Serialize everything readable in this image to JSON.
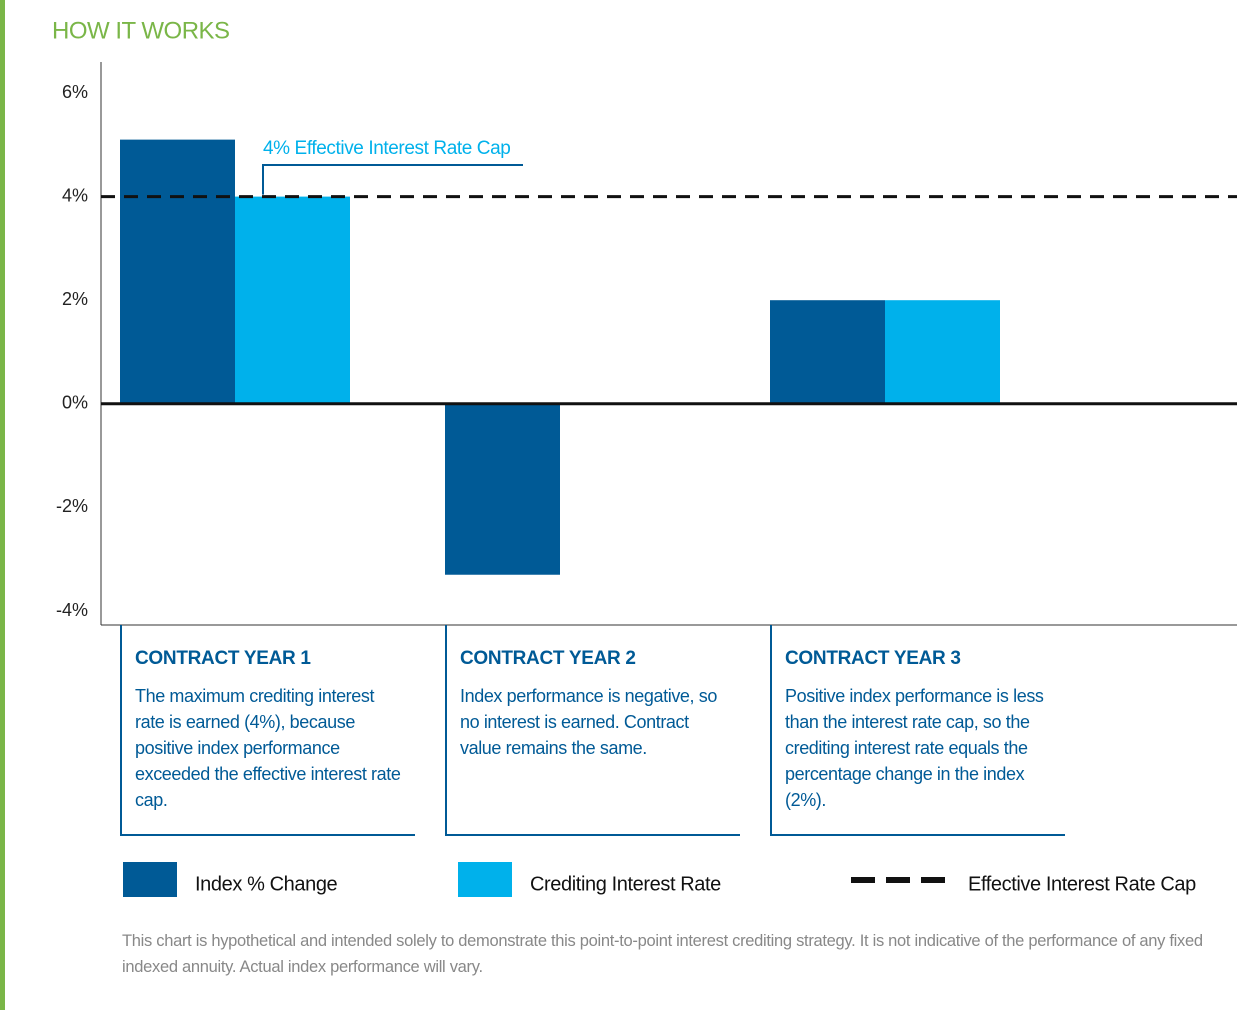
{
  "chart_data": {
    "type": "bar",
    "title": "HOW IT WORKS",
    "categories": [
      "CONTRACT YEAR 1",
      "CONTRACT YEAR 2",
      "CONTRACT YEAR 3"
    ],
    "descriptions": [
      "The maximum crediting interest rate is earned (4%), because positive index performance exceeded the effective interest rate cap.",
      "Index performance is negative, so no interest is earned. Contract value remains the same.",
      "Positive index performance is less than the interest rate cap, so the crediting interest rate equals the percentage change in the index (2%)."
    ],
    "series": [
      {
        "name": "Index % Change",
        "color": "#005a96",
        "values": [
          5.1,
          -3.3,
          2
        ]
      },
      {
        "name": "Crediting Interest Rate",
        "color": "#00b1eb",
        "values": [
          4,
          0,
          2
        ]
      }
    ],
    "cap": {
      "name": "Effective Interest Rate Cap",
      "value": 4,
      "label": "4% Effective Interest Rate Cap",
      "color": "#00b1eb"
    },
    "ylim": [
      -4,
      6
    ],
    "yticks": [
      {
        "value": 6,
        "label": "6%"
      },
      {
        "value": 4,
        "label": "4%"
      },
      {
        "value": 2,
        "label": "2%"
      },
      {
        "value": 0,
        "label": "0%"
      },
      {
        "value": -2,
        "label": "-2%"
      },
      {
        "value": -4,
        "label": "-4%"
      }
    ],
    "note": "This chart is hypothetical and intended solely to demonstrate this point-to-point interest crediting strategy. It is not indicative of the performance of any fixed indexed annuity. Actual index performance will vary."
  }
}
